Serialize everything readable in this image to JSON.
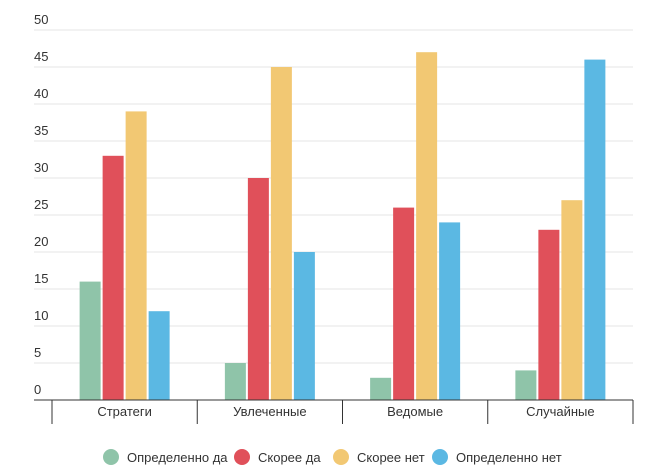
{
  "chart_data": {
    "type": "bar",
    "categories": [
      "Стратеги",
      "Увлеченные",
      "Ведомые",
      "Случайные"
    ],
    "series": [
      {
        "name": "Определенно да",
        "color": "#8fc4a9",
        "values": [
          16,
          5,
          3,
          4
        ]
      },
      {
        "name": "Скорее да",
        "color": "#e0505a",
        "values": [
          33,
          30,
          26,
          23
        ]
      },
      {
        "name": "Скорее нет",
        "color": "#f2c873",
        "values": [
          39,
          45,
          47,
          27
        ]
      },
      {
        "name": "Определенно нет",
        "color": "#5bb8e3",
        "values": [
          12,
          20,
          24,
          46
        ]
      }
    ],
    "yticks": [
      0,
      5,
      10,
      15,
      20,
      25,
      30,
      35,
      40,
      45,
      50
    ],
    "ylim": [
      0,
      50
    ],
    "grid": true,
    "legend_position": "bottom",
    "gridline_color": "#e6e6e6",
    "axis_color": "#333333"
  }
}
